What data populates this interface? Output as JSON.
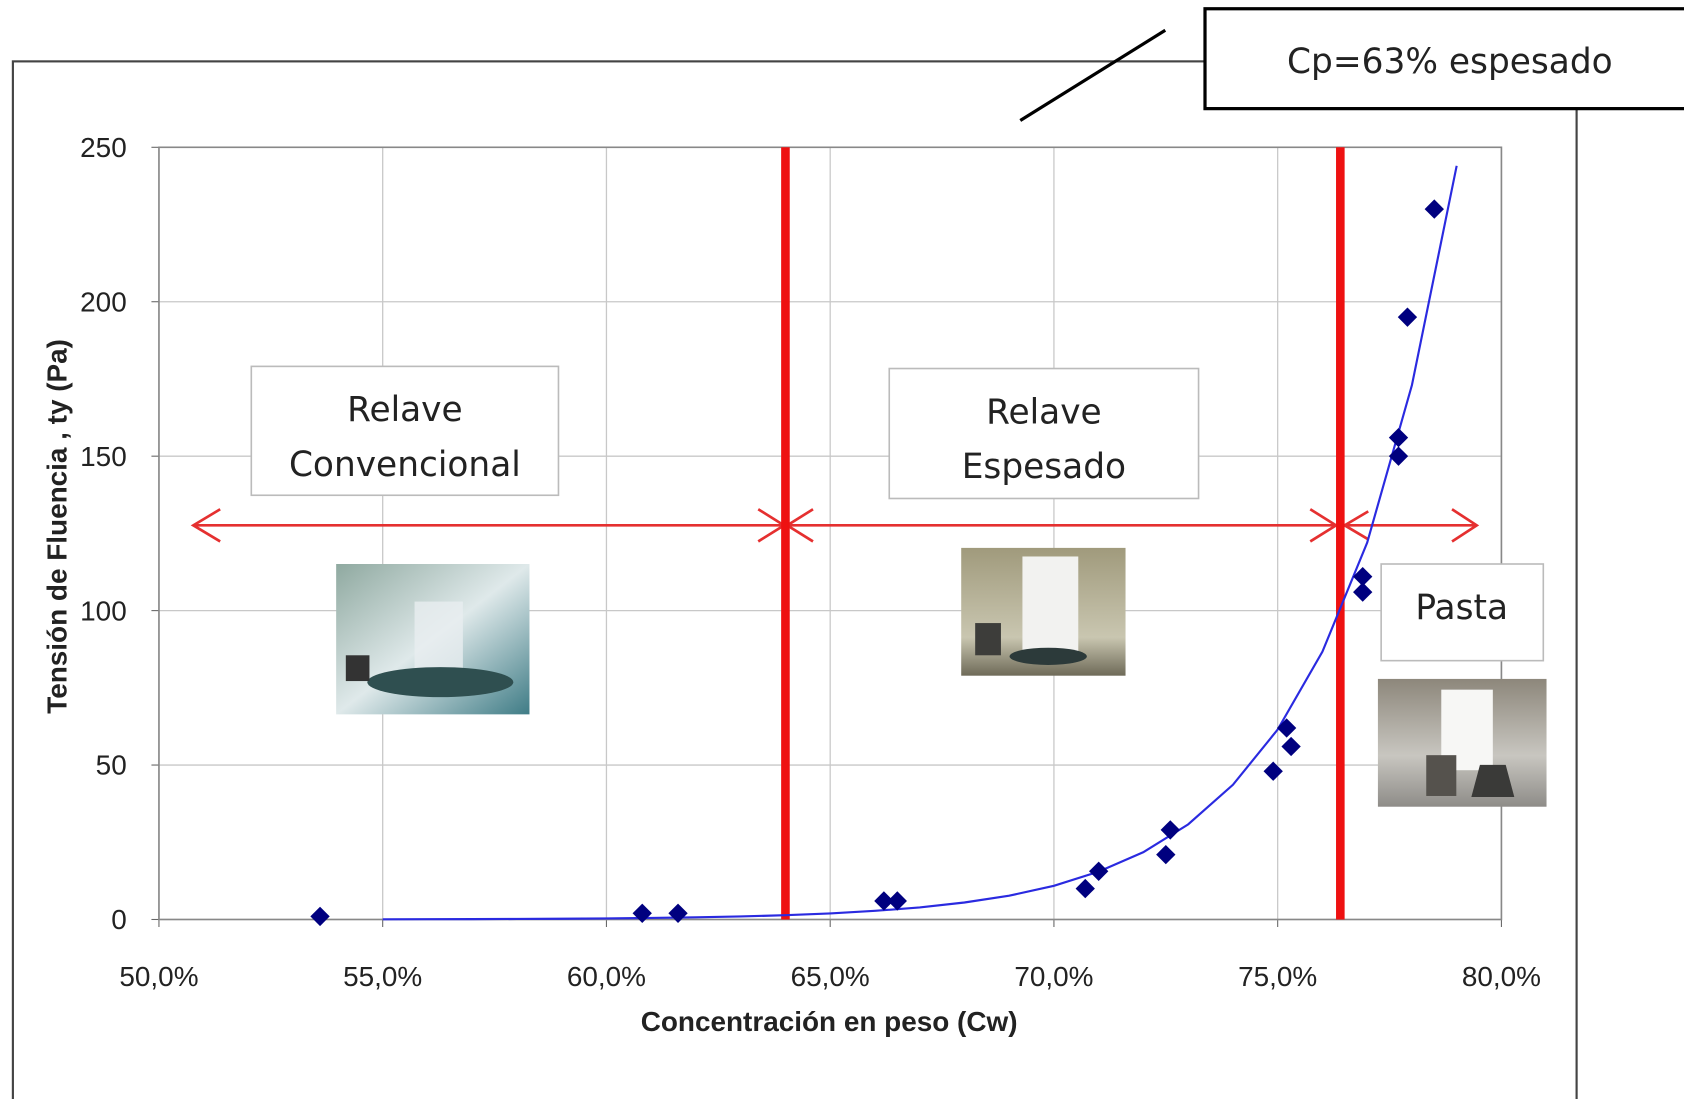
{
  "chart_data": {
    "type": "scatter",
    "x_label": "Concentración en peso (Cw)",
    "y_label": "Tensión de Fluencia , ty (Pa)",
    "xlim": [
      50,
      80
    ],
    "xticks": [
      {
        "value": 50,
        "label": "50,0%"
      },
      {
        "value": 55,
        "label": "55,0%"
      },
      {
        "value": 60,
        "label": "60,0%"
      },
      {
        "value": 65,
        "label": "65,0%"
      },
      {
        "value": 70,
        "label": "70,0%"
      },
      {
        "value": 75,
        "label": "75,0%"
      },
      {
        "value": 80,
        "label": "80,0%"
      }
    ],
    "ylim": [
      0,
      250
    ],
    "yticks": [
      0,
      50,
      100,
      150,
      200,
      250
    ],
    "grid": true,
    "series": [
      {
        "style": "markers",
        "color": "#00007f",
        "x": [
          53.6,
          60.8,
          61.6,
          66.2,
          66.5,
          70.7,
          71.0,
          72.5,
          72.6,
          74.9,
          75.2,
          75.3,
          76.9,
          76.9,
          77.7,
          77.7,
          77.9,
          78.5
        ],
        "values": [
          1,
          2,
          2,
          6,
          6,
          10,
          15.6,
          21,
          29,
          48,
          62,
          56,
          106,
          111,
          150,
          156,
          195,
          230
        ]
      },
      {
        "style": "line",
        "color": "#2a2ae0",
        "x": [
          55,
          56,
          57,
          58,
          59,
          60,
          61,
          62,
          63,
          64,
          65,
          66,
          67,
          68,
          69,
          70,
          71,
          72,
          73,
          74,
          75,
          76,
          77,
          78,
          79
        ],
        "values": [
          0.06,
          0.087,
          0.12,
          0.17,
          0.24,
          0.35,
          0.49,
          0.69,
          0.98,
          1.38,
          1.95,
          2.8,
          3.9,
          5.5,
          7.7,
          10.9,
          15.5,
          21.8,
          30.8,
          43.6,
          61.5,
          86.7,
          122,
          173,
          244
        ]
      }
    ],
    "vlines": [
      64.0,
      76.4
    ],
    "vline_color": "#ee1111",
    "annotations": [
      {
        "lines": [
          "Relave",
          "Convencional"
        ]
      },
      {
        "lines": [
          "Relave",
          "Espesado"
        ]
      },
      {
        "lines": [
          "Pasta"
        ]
      },
      {
        "lines": [
          "Cp=63% espesado"
        ]
      }
    ]
  }
}
